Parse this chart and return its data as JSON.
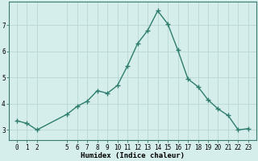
{
  "xlabel": "Humidex (Indice chaleur)",
  "x": [
    0,
    1,
    2,
    5,
    6,
    7,
    8,
    9,
    10,
    11,
    12,
    13,
    14,
    15,
    16,
    17,
    18,
    19,
    20,
    21,
    22,
    23
  ],
  "y": [
    3.35,
    3.25,
    3.0,
    3.6,
    3.9,
    4.1,
    4.5,
    4.4,
    4.7,
    5.45,
    6.3,
    6.8,
    7.55,
    7.05,
    6.05,
    4.95,
    4.65,
    4.15,
    3.8,
    3.55,
    3.0,
    3.05
  ],
  "line_color": "#2e7d6e",
  "marker": "+",
  "marker_size": 4.0,
  "background_color": "#d6eeeb",
  "grid_color": "#b8d8d4",
  "axis_bg": "#d6eeeb",
  "ylim": [
    2.6,
    7.9
  ],
  "yticks": [
    3,
    4,
    5,
    6,
    7
  ],
  "xticks": [
    0,
    1,
    2,
    5,
    6,
    7,
    8,
    9,
    10,
    11,
    12,
    13,
    14,
    15,
    16,
    17,
    18,
    19,
    20,
    21,
    22,
    23
  ],
  "tick_fontsize": 5.5,
  "xlabel_fontsize": 6.5,
  "line_width": 1.0,
  "spine_color": "#3a7a70"
}
